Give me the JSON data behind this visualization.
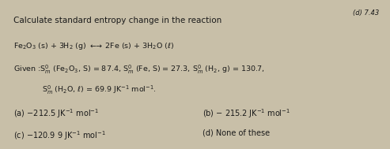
{
  "bg_color": "#c8bfa8",
  "title_text": "Calculate standard entropy change in the reaction",
  "reaction": "Fe$_2$O$_3$ (s) + 3H$_2$ (g) $\\longleftrightarrow\\!\\!\\!\\rightarrow$ 2Fe (s) + 3H$_2$O ($\\ell$)",
  "given1": "Given :S$^0_m$ (Fe$_2$O$_3$, S) = 87.4, S$^0_m$ (Fe, S) = 27.3, S$^0_m$ (H$_2$, g) = 130.7,",
  "given2": "S$^0_m$ (H$_2$O, $\\ell$) = 69.9 JK$^{-1}$ mol$^{-1}$.",
  "opt_a": "(a) $-$212.5 JK$^{-1}$ mol$^{-1}$",
  "opt_b": "(b) $-$ 215.2 JK$^{-1}$ mol$^{-1}$",
  "opt_c": "(c) $-$120.9 9 JK$^{-1}$ mol$^{-1}$",
  "opt_d": "(d) None of these",
  "corner_text": "(d) 7.43",
  "text_color": "#1a1a1a",
  "fs_title": 7.5,
  "fs_body": 6.8,
  "fs_opts": 7.0
}
